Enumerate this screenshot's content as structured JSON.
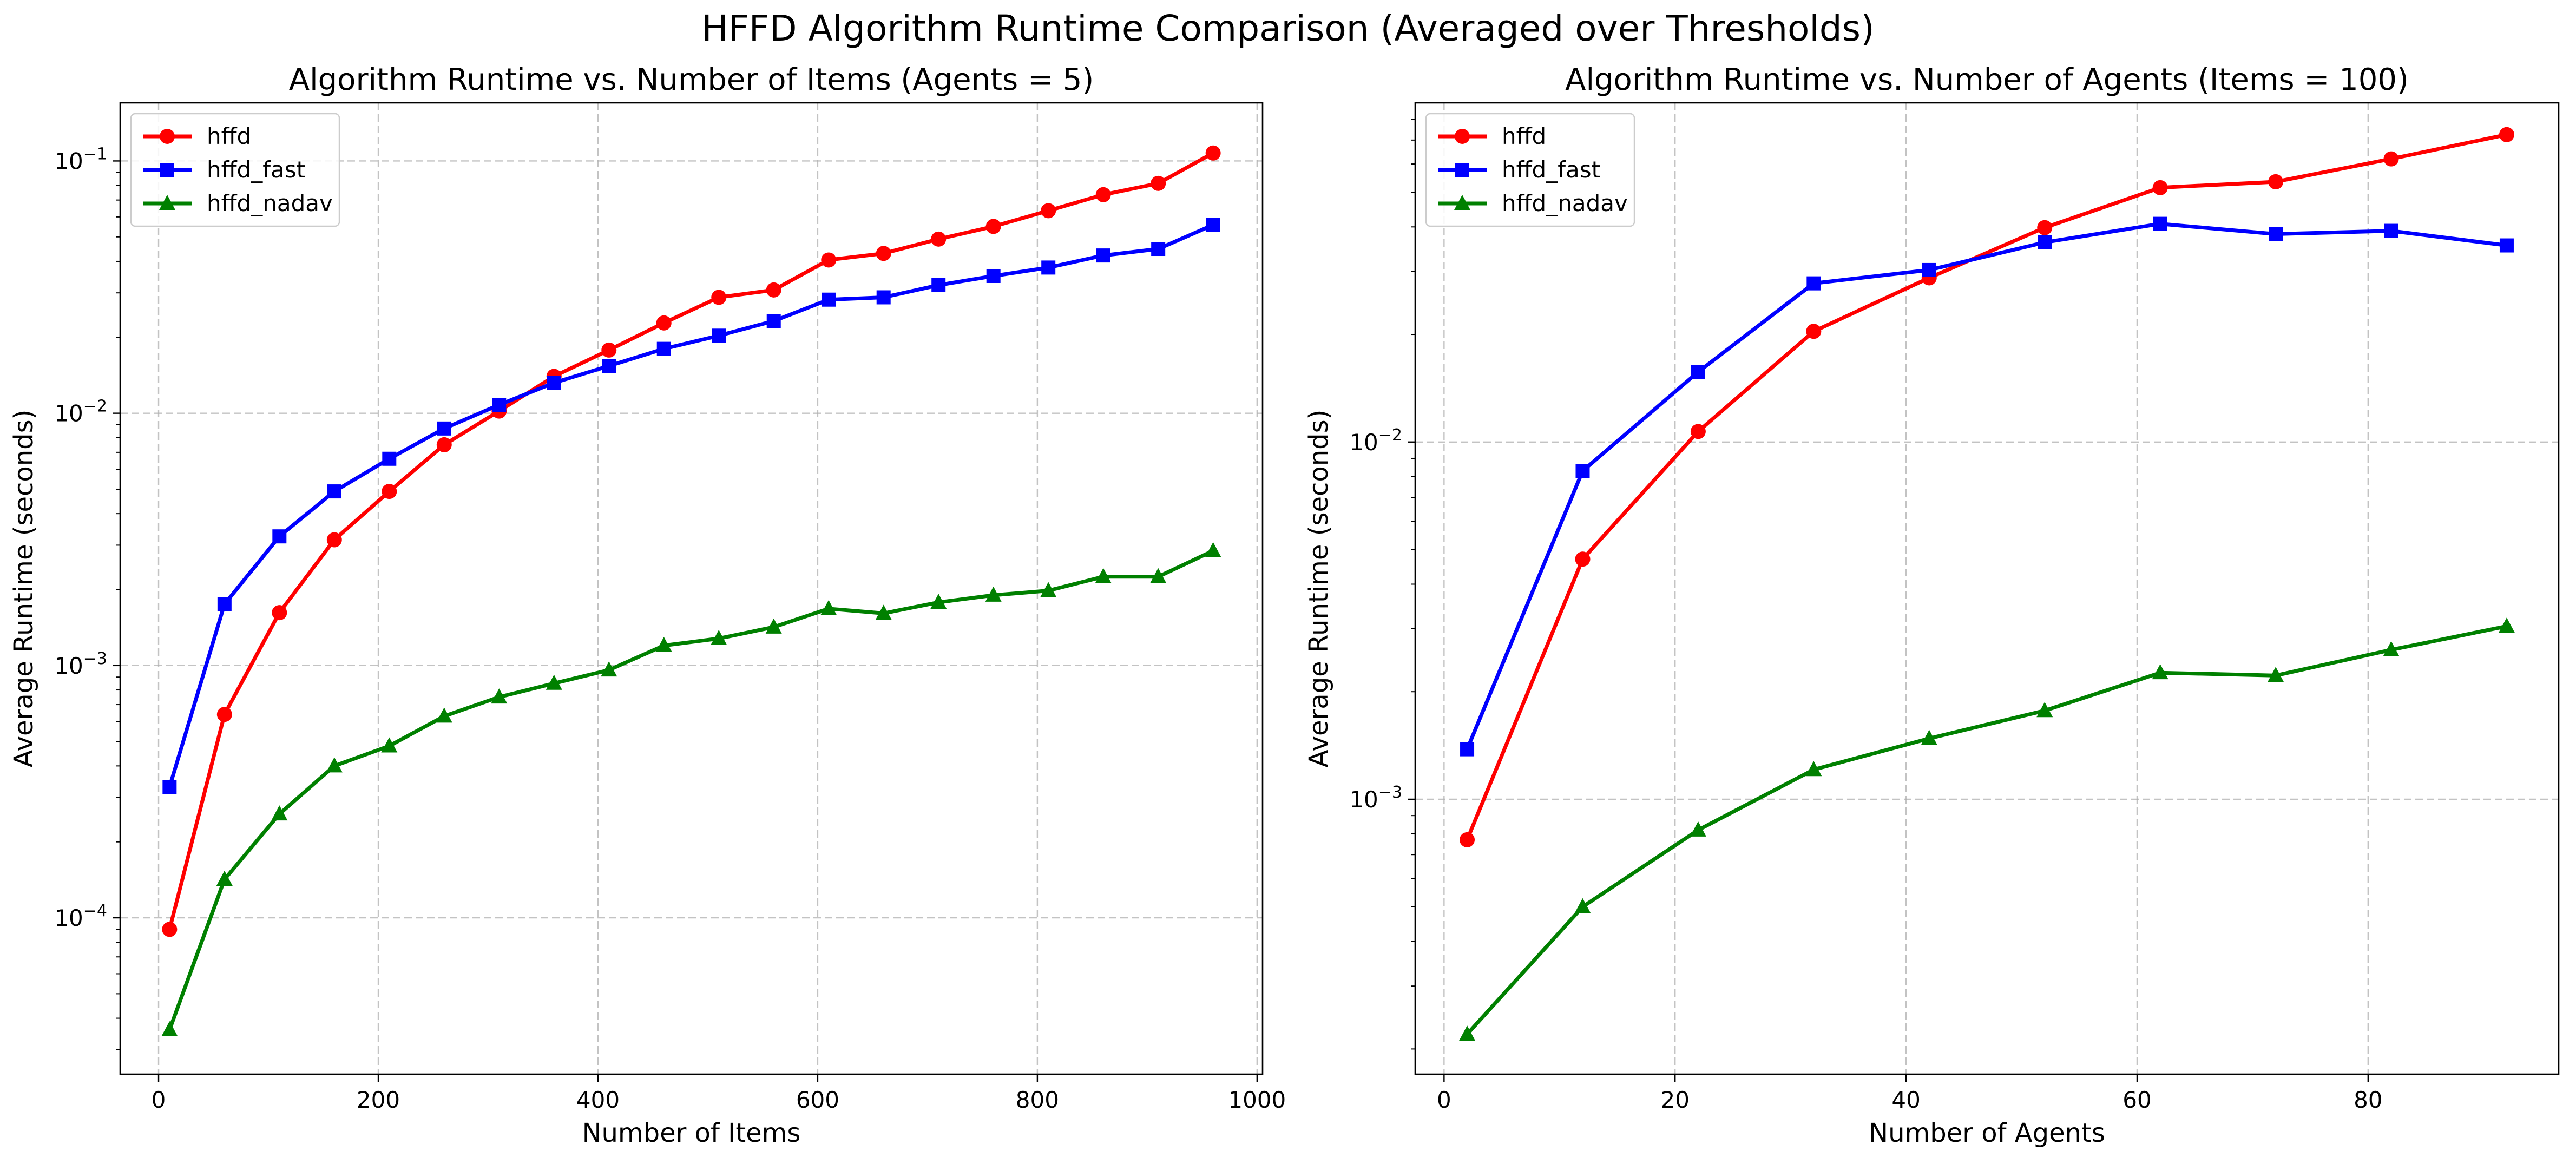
{
  "figure": {
    "suptitle": "HFFD Algorithm Runtime Comparison (Averaged over Thresholds)"
  },
  "colors": {
    "hffd": "#ff0000",
    "hffd_fast": "#0000ff",
    "hffd_nadav": "#008000",
    "grid": "#b0b0b0"
  },
  "chart_data": [
    {
      "type": "line",
      "title": "Algorithm Runtime vs. Number of Items (Agents = 5)",
      "xlabel": "Number of Items",
      "ylabel": "Average Runtime (seconds)",
      "xlim": [
        -35,
        1005
      ],
      "ylim": [
        2.4e-05,
        0.17
      ],
      "yscale": "log",
      "grid": true,
      "legend_position": "top-left",
      "xticks": [
        0,
        200,
        400,
        600,
        800,
        1000
      ],
      "xtick_labels": [
        "0",
        "200",
        "400",
        "600",
        "800",
        "1000"
      ],
      "yticks": [
        0.0001,
        0.001,
        0.01,
        0.1
      ],
      "ytick_labels": [
        [
          "10",
          "−4"
        ],
        [
          "10",
          "−3"
        ],
        [
          "10",
          "−2"
        ],
        [
          "10",
          "−1"
        ]
      ],
      "x": [
        10,
        60,
        110,
        160,
        210,
        260,
        310,
        360,
        410,
        460,
        510,
        560,
        610,
        660,
        710,
        760,
        810,
        860,
        910,
        960
      ],
      "series": [
        {
          "name": "hffd",
          "marker": "circle",
          "values": [
            9e-05,
            0.00064,
            0.00162,
            0.00315,
            0.0049,
            0.0075,
            0.0102,
            0.014,
            0.0178,
            0.0228,
            0.0288,
            0.0308,
            0.0405,
            0.043,
            0.049,
            0.055,
            0.0635,
            0.0735,
            0.0815,
            0.1075
          ]
        },
        {
          "name": "hffd_fast",
          "marker": "square",
          "values": [
            0.00033,
            0.00175,
            0.00325,
            0.0049,
            0.0066,
            0.0087,
            0.0108,
            0.0132,
            0.0154,
            0.018,
            0.0203,
            0.0232,
            0.0282,
            0.0288,
            0.0322,
            0.035,
            0.0378,
            0.0422,
            0.0448,
            0.0558
          ]
        },
        {
          "name": "hffd_nadav",
          "marker": "triangle",
          "values": [
            3.6e-05,
            0.000142,
            0.000258,
            0.0004,
            0.00048,
            0.00063,
            0.00075,
            0.00085,
            0.00096,
            0.0012,
            0.00128,
            0.00142,
            0.00168,
            0.00161,
            0.00178,
            0.0019,
            0.00198,
            0.00225,
            0.00225,
            0.00285
          ]
        }
      ]
    },
    {
      "type": "line",
      "title": "Algorithm Runtime vs. Number of Agents (Items = 100)",
      "xlabel": "Number of Agents",
      "ylabel": "Average Runtime (seconds)",
      "xlim": [
        -2.5,
        96.5
      ],
      "ylim": [
        0.00017,
        0.089
      ],
      "yscale": "log",
      "grid": true,
      "legend_position": "top-left",
      "xticks": [
        0,
        20,
        40,
        60,
        80
      ],
      "xtick_labels": [
        "0",
        "20",
        "40",
        "60",
        "80"
      ],
      "yticks": [
        0.001,
        0.01
      ],
      "ytick_labels": [
        [
          "10",
          "−3"
        ],
        [
          "10",
          "−2"
        ]
      ],
      "x": [
        2,
        12,
        22,
        32,
        42,
        52,
        62,
        72,
        82,
        92
      ],
      "series": [
        {
          "name": "hffd",
          "marker": "circle",
          "values": [
            0.00077,
            0.0047,
            0.0107,
            0.0204,
            0.0288,
            0.0398,
            0.0515,
            0.0535,
            0.062,
            0.0725
          ]
        },
        {
          "name": "hffd_fast",
          "marker": "square",
          "values": [
            0.00138,
            0.0083,
            0.0157,
            0.0278,
            0.0303,
            0.0362,
            0.0408,
            0.0382,
            0.039,
            0.0355
          ]
        },
        {
          "name": "hffd_nadav",
          "marker": "triangle",
          "values": [
            0.00022,
            0.0005,
            0.00082,
            0.00121,
            0.00148,
            0.00177,
            0.00226,
            0.00222,
            0.00262,
            0.00305
          ]
        }
      ]
    }
  ]
}
